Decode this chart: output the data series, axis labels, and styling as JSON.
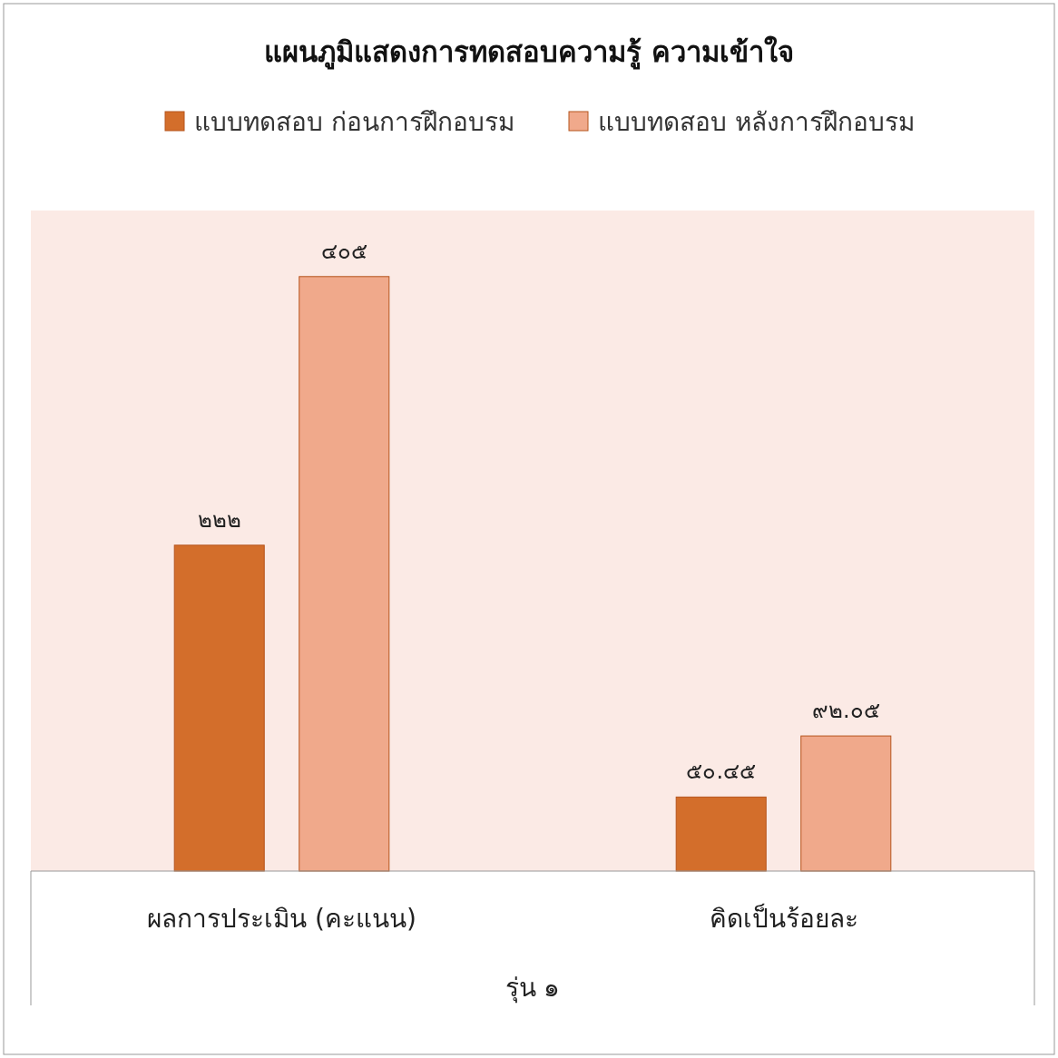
{
  "chart_data": {
    "type": "bar",
    "title": "แผนภูมิแสดงการทดสอบความรู้ ความเข้าใจ",
    "xlabel": "รุ่น ๑",
    "categories": [
      "ผลการประเมิน (คะแนน)",
      "คิดเป็นร้อยละ"
    ],
    "series": [
      {
        "name": "แบบทดสอบ ก่อนการฝึกอบรม",
        "color": "#d36e2b",
        "values": [
          222,
          50.45
        ],
        "value_labels": [
          "๒๒๒",
          "๕๐.๔๕"
        ]
      },
      {
        "name": "แบบทดสอบ หลังการฝึกอบรม",
        "color": "#f0a98b",
        "values": [
          405,
          92.05
        ],
        "value_labels": [
          "๔๐๕",
          "๙๒.๐๕"
        ]
      }
    ],
    "ylim": [
      0,
      450
    ],
    "legend": "top",
    "tick_labels": "x",
    "grid": false
  }
}
